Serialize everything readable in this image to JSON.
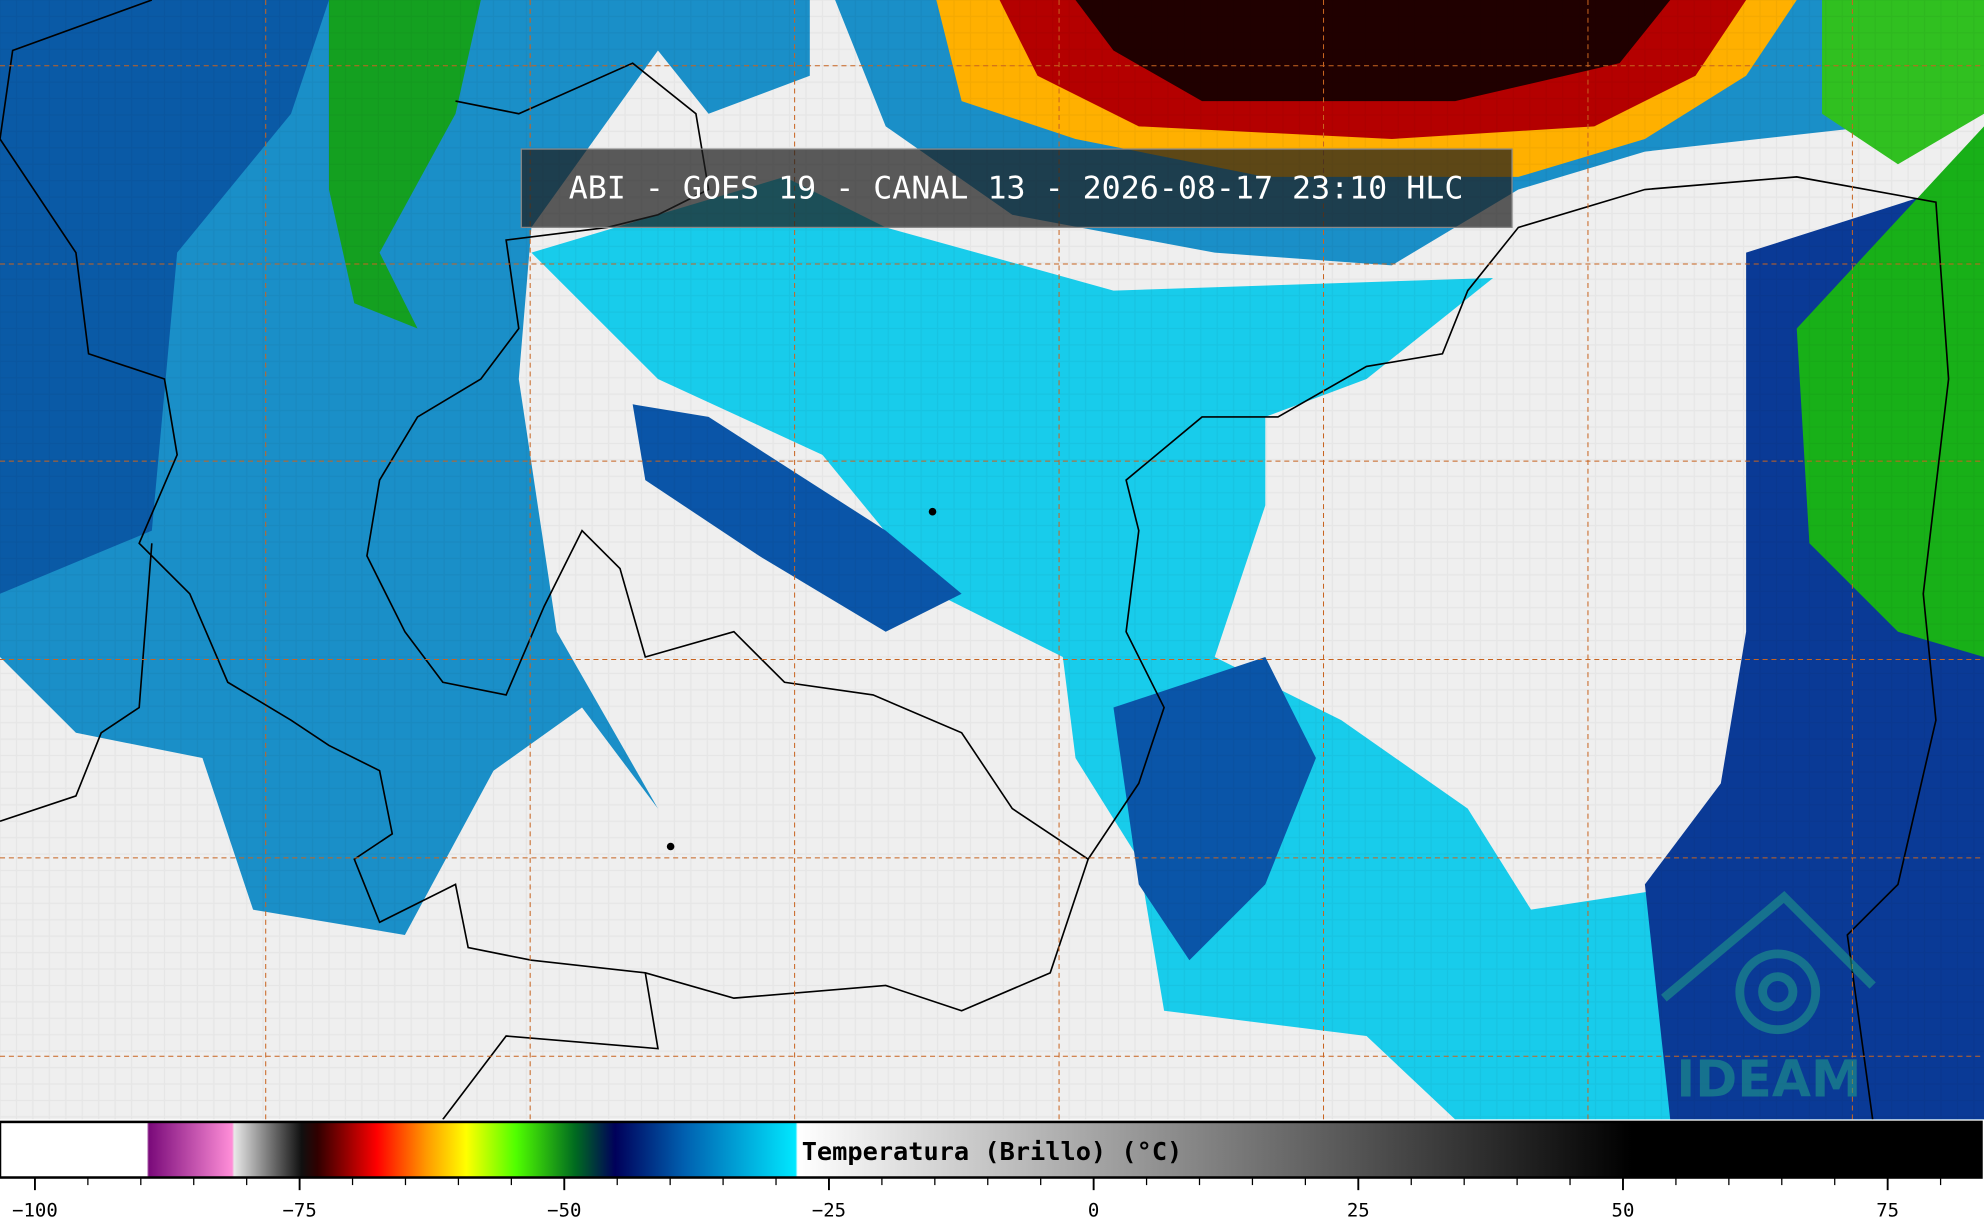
{
  "title": "ABI - GOES 19 - CANAL 13 - 2026-08-17 23:10 HLC",
  "colorbar": {
    "label": "Temperatura (Brillo) (°C)",
    "xlim": [
      -103.3,
      84.1
    ],
    "xticks": [
      {
        "value": -100,
        "label": "−100"
      },
      {
        "value": -75,
        "label": "−75"
      },
      {
        "value": -50,
        "label": "−50"
      },
      {
        "value": -25,
        "label": "−25"
      },
      0,
      25,
      50,
      75
    ],
    "minor_ticks": [
      -95,
      -90,
      -85,
      -80,
      -70,
      -65,
      -60,
      -55,
      -45,
      -40,
      -35,
      -30,
      -20,
      -15,
      -10,
      -5,
      5,
      10,
      15,
      20,
      30,
      35,
      40,
      45,
      55,
      60,
      65,
      70,
      80
    ]
  },
  "logo": "IDEAM"
}
